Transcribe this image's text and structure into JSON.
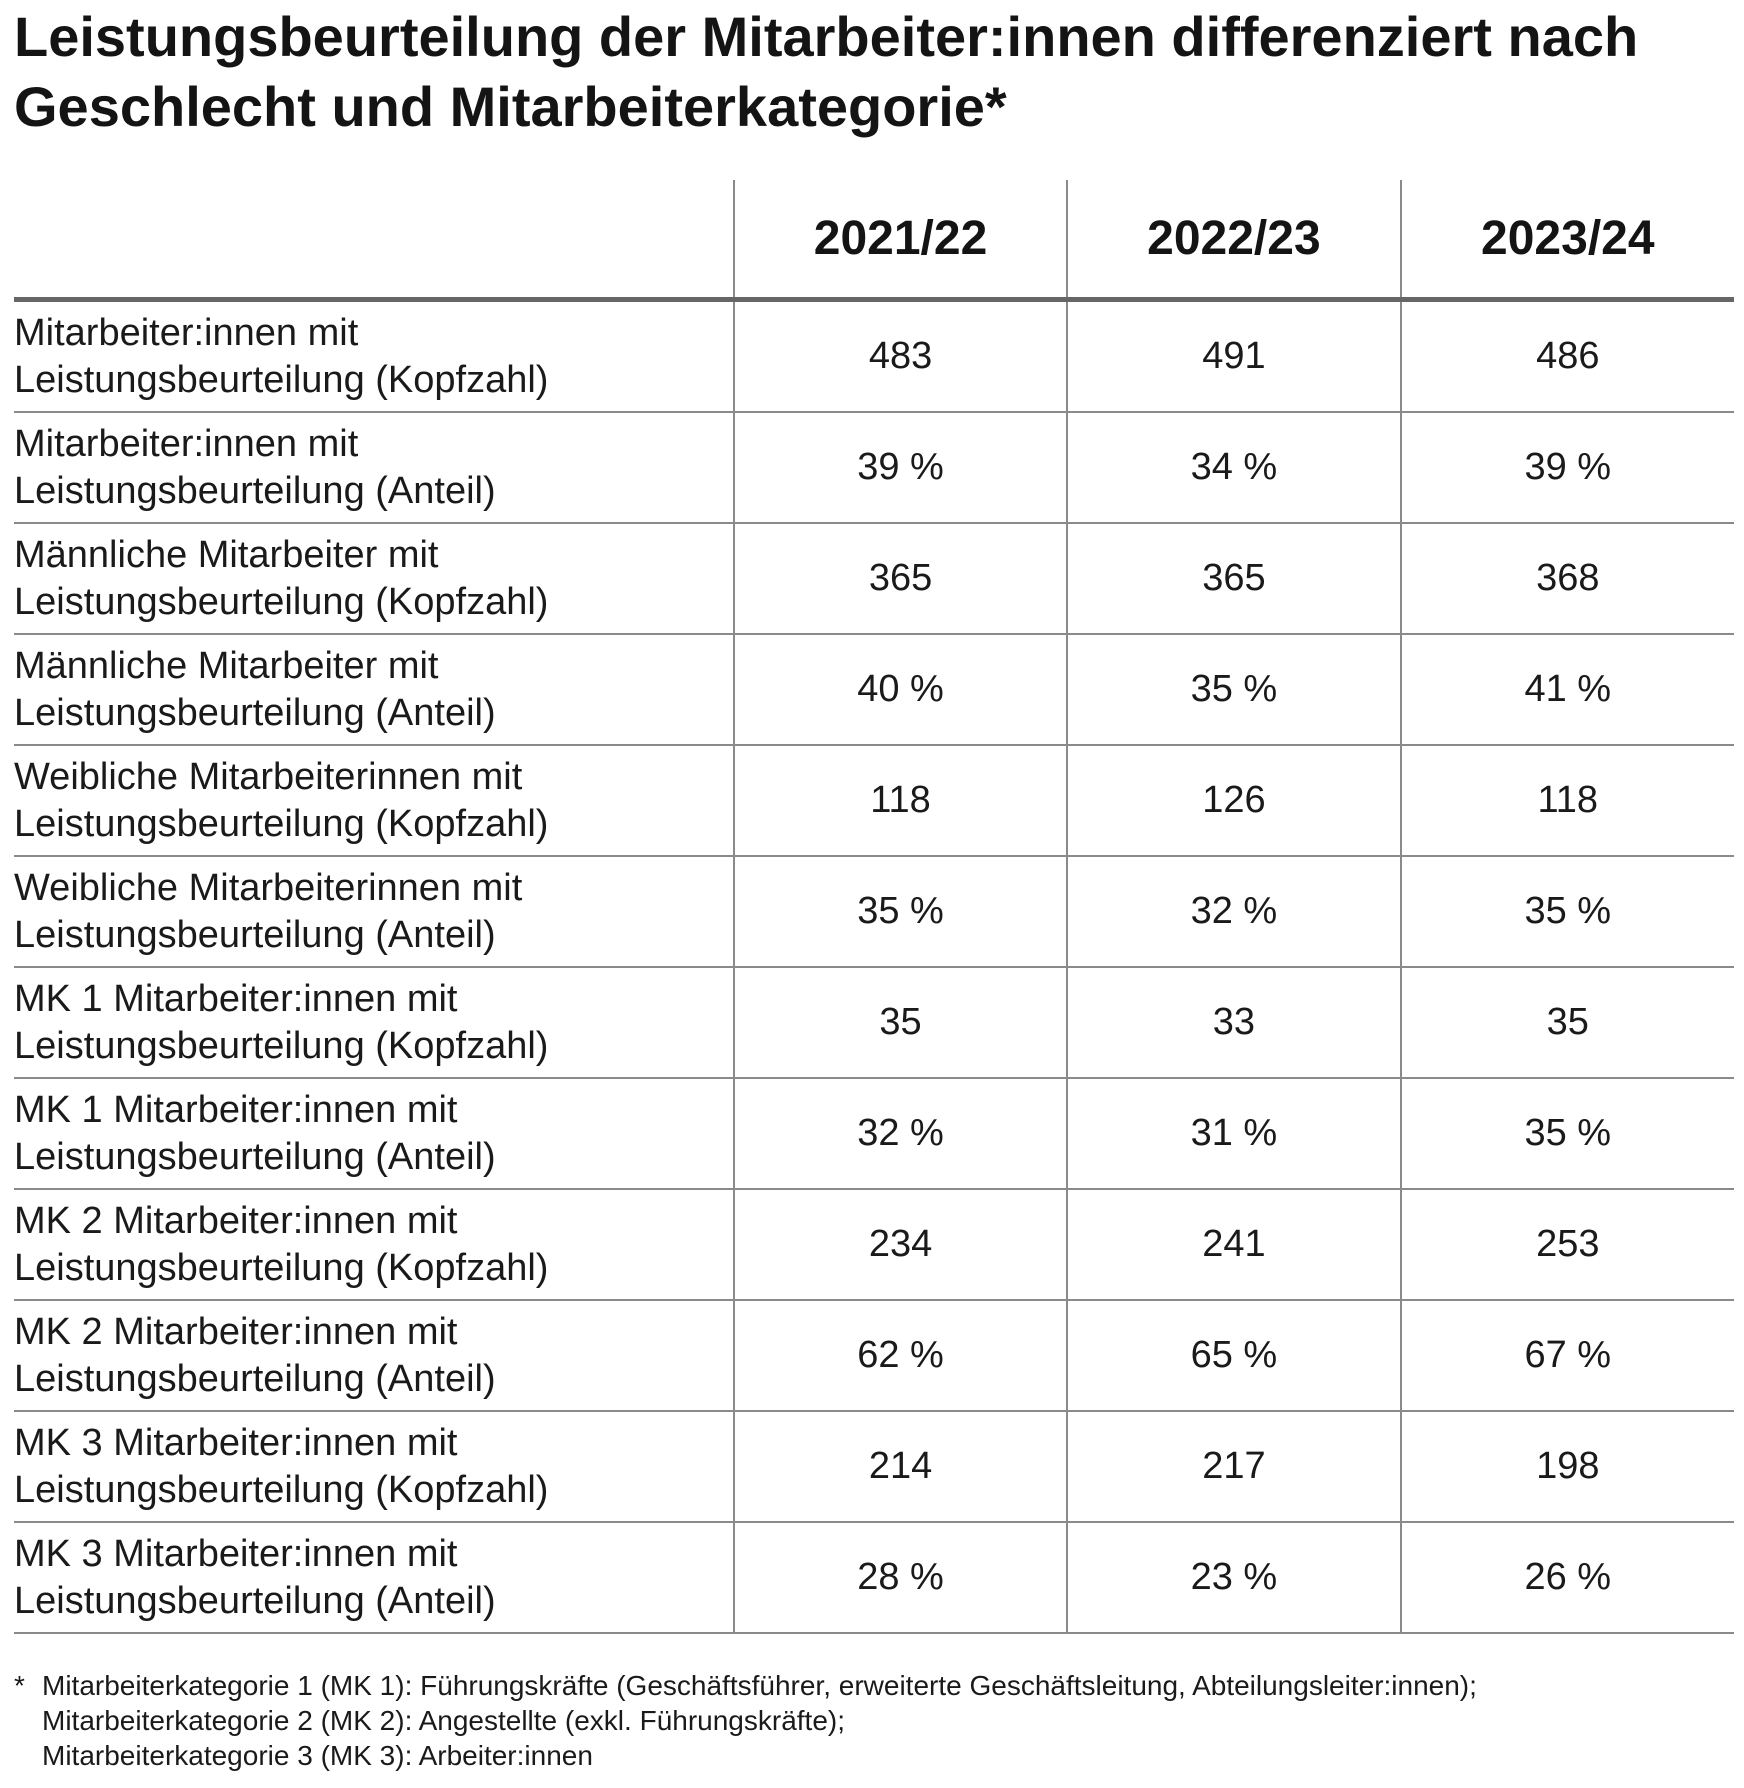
{
  "title": {
    "line1": "Leistungsbeurteilung der Mitarbeiter:innen differenziert nach",
    "line2": "Geschlecht und Mitarbeiterkategorie*"
  },
  "table": {
    "header_label": "",
    "columns": [
      "2021/22",
      "2022/23",
      "2023/24"
    ],
    "rows": [
      {
        "label1": "Mitarbeiter:innen mit",
        "label2": "Leistungsbeurteilung (Kopfzahl)",
        "values": [
          "483",
          "491",
          "486"
        ]
      },
      {
        "label1": "Mitarbeiter:innen mit",
        "label2": "Leistungsbeurteilung (Anteil)",
        "values": [
          "39 %",
          "34 %",
          "39 %"
        ]
      },
      {
        "label1": "Männliche Mitarbeiter mit",
        "label2": "Leistungsbeurteilung (Kopfzahl)",
        "values": [
          "365",
          "365",
          "368"
        ]
      },
      {
        "label1": "Männliche Mitarbeiter mit",
        "label2": "Leistungsbeurteilung (Anteil)",
        "values": [
          "40 %",
          "35 %",
          "41 %"
        ]
      },
      {
        "label1": "Weibliche Mitarbeiterinnen mit",
        "label2": "Leistungsbeurteilung (Kopfzahl)",
        "values": [
          "118",
          "126",
          "118"
        ]
      },
      {
        "label1": "Weibliche Mitarbeiterinnen mit",
        "label2": "Leistungsbeurteilung (Anteil)",
        "values": [
          "35 %",
          "32 %",
          "35 %"
        ]
      },
      {
        "label1": "MK 1 Mitarbeiter:innen mit",
        "label2": "Leistungsbeurteilung (Kopfzahl)",
        "values": [
          "35",
          "33",
          "35"
        ]
      },
      {
        "label1": "MK 1 Mitarbeiter:innen mit",
        "label2": "Leistungsbeurteilung (Anteil)",
        "values": [
          "32 %",
          "31 %",
          "35 %"
        ]
      },
      {
        "label1": "MK 2 Mitarbeiter:innen mit",
        "label2": "Leistungsbeurteilung (Kopfzahl)",
        "values": [
          "234",
          "241",
          "253"
        ]
      },
      {
        "label1": "MK 2 Mitarbeiter:innen mit",
        "label2": "Leistungsbeurteilung (Anteil)",
        "values": [
          "62 %",
          "65 %",
          "67 %"
        ]
      },
      {
        "label1": "MK 3 Mitarbeiter:innen mit",
        "label2": "Leistungsbeurteilung (Kopfzahl)",
        "values": [
          "214",
          "217",
          "198"
        ]
      },
      {
        "label1": "MK 3 Mitarbeiter:innen mit",
        "label2": "Leistungsbeurteilung (Anteil)",
        "values": [
          "28 %",
          "23 %",
          "26 %"
        ]
      }
    ]
  },
  "footnote": {
    "marker": "*",
    "lines": [
      "Mitarbeiterkategorie 1 (MK 1): Führungskräfte (Geschäftsführer, erweiterte Geschäftsleitung, Abteilungsleiter:innen);",
      "Mitarbeiterkategorie 2 (MK 2): Angestellte (exkl. Führungskräfte);",
      "Mitarbeiterkategorie 3 (MK 3): Arbeiter:innen"
    ]
  }
}
